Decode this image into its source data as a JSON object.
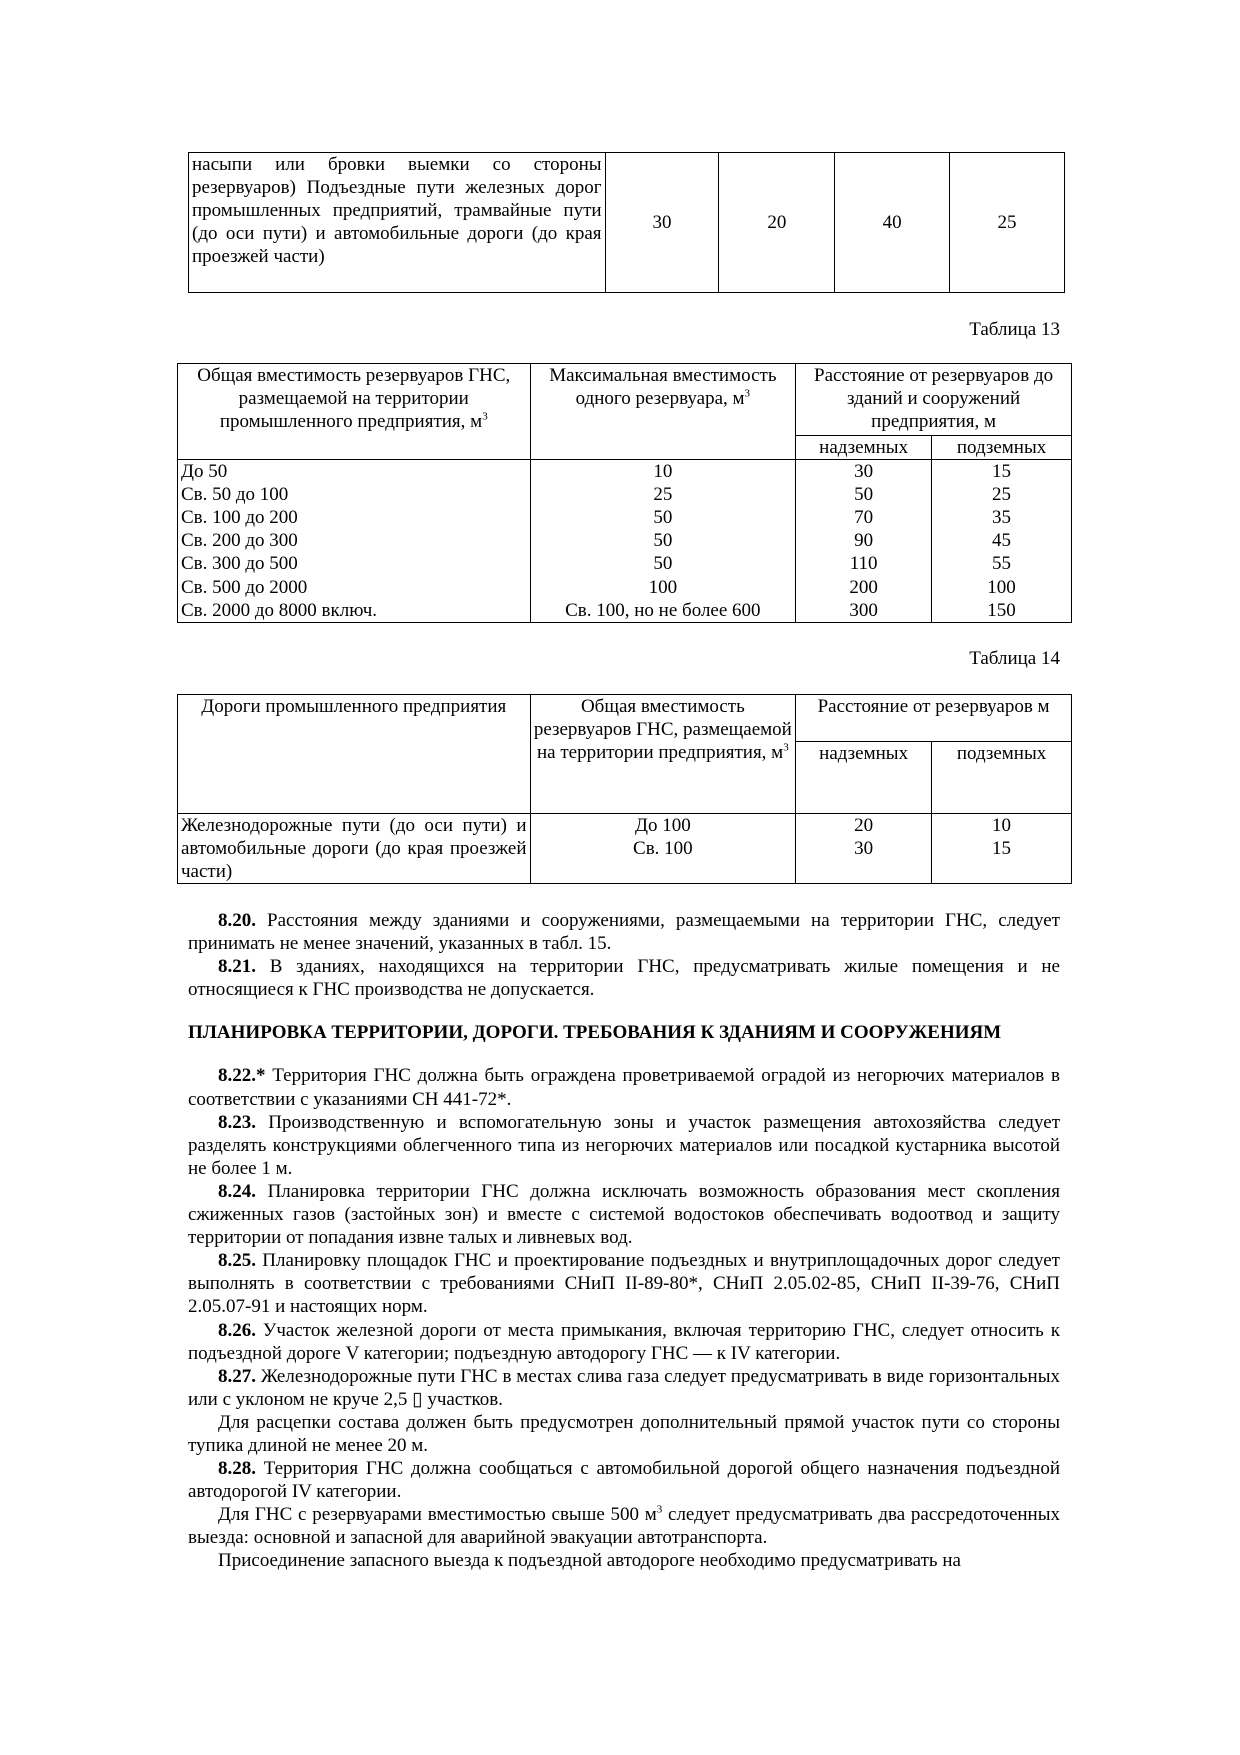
{
  "table12_tail": {
    "text": "насыпи или бровки выемки со стороны резервуаров) Подъездные пути железных дорог промышленных предприятий, трамвайные пути (до оси пути) и автомобильные дороги (до края проезжей части)",
    "values": [
      "30",
      "20",
      "40",
      "25"
    ]
  },
  "table13": {
    "caption": "Таблица 13",
    "headers": [
      "Общая вместимость резервуаров ГНС, размещаемой на территории промышленного предприятия, м",
      "Максимальная вместимость одного резервуара, м",
      "Расстояние от резервуаров до зданий и сооружений предприятия, м",
      "надземных",
      "подземных"
    ],
    "sup": "3",
    "rows": [
      [
        "До 50",
        "10",
        "30",
        "15"
      ],
      [
        "Св. 50 до 100",
        "25",
        "50",
        "25"
      ],
      [
        "Св. 100 до 200",
        "50",
        "70",
        "35"
      ],
      [
        "Св. 200 до 300",
        "50",
        "90",
        "45"
      ],
      [
        "Св. 300 до 500",
        "50",
        "110",
        "55"
      ],
      [
        "Св. 500 до 2000",
        "100",
        "200",
        "100"
      ],
      [
        "Св. 2000 до 8000 включ.",
        "Св. 100, но не более 600",
        "300",
        "150"
      ]
    ]
  },
  "table14": {
    "caption": "Таблица 14",
    "headers": [
      "Дороги промышленного предприятия",
      "Общая вместимость резервуаров ГНС, размещаемой на территории предприятия, м",
      "Расстояние от резервуаров м",
      "надземных",
      "подземных"
    ],
    "sup": "3",
    "row": {
      "road": "Железнодорожные пути (до оси пути) и автомобильные дороги (до края проезжей части)",
      "capacity": [
        "До 100",
        "Св. 100"
      ],
      "above": [
        "20",
        "30"
      ],
      "under": [
        "10",
        "15"
      ]
    }
  },
  "paragraphs": [
    {
      "num": "8.20.",
      "text": " Расстояния между зданиями и сооружениями, размещаемыми на территории ГНС, следует принимать не менее значений, указанных в табл. 15."
    },
    {
      "num": "8.21.",
      "text": " В зданиях, находящихся на территории ГНС, предусматривать жилые помещения и не относящиеся к ГНС производства не допускается."
    }
  ],
  "heading": "ПЛАНИРОВКА ТЕРРИТОРИИ, ДОРОГИ. ТРЕБОВАНИЯ К ЗДАНИЯМ И СООРУЖЕНИЯМ",
  "paragraphs2": [
    {
      "num": "8.22.*",
      "text": " Территория ГНС должна быть ограждена проветриваемой оградой из негорючих материалов в соответствии с указаниями СН 441-72*."
    },
    {
      "num": "8.23.",
      "text": " Производственную и вспомогательную зоны и участок размещения автохозяйства следует разделять конструкциями облегченного типа из негорючих материалов или посадкой кустарника высотой не более 1 м."
    },
    {
      "num": "8.24.",
      "text": " Планировка территории ГНС должна исключать возможность образования мест скопления сжиженных газов (застойных зон) и вместе с системой водостоков обеспечивать водоотвод и защиту территории от попадания извне талых и ливневых вод."
    },
    {
      "num": "8.25.",
      "text": " Планировку площадок ГНС и проектирование подъездных и внутриплощадочных дорог следует выполнять в соответствии с требованиями СНиП II-89-80*, СНиП 2.05.02-85, СНиП II-39-76, СНиП 2.05.07-91 и настоящих норм."
    },
    {
      "num": "8.26.",
      "text": " Участок железной дороги от места примыкания, включая территорию ГНС, следует относить к подъездной дороге V категории; подъездную автодорогу ГНС — к IV категории."
    },
    {
      "num": "8.27.",
      "text": " Железнодорожные пути ГНС в местах слива газа следует предусматривать в виде горизонтальных или с уклоном не круче 2,5 ▯ участков."
    },
    {
      "num": "",
      "text": "Для расцепки состава должен быть предусмотрен дополнительный прямой участок пути со стороны тупика длиной не менее 20 м."
    },
    {
      "num": "8.28.",
      "text": " Территория ГНС должна сообщаться с автомобильной дорогой общего назначения подъездной автодорогой IV категории."
    }
  ],
  "p_500": {
    "before": "Для ГНС с резервуарами вместимостью свыше 500 м",
    "sup": "3",
    "after": " следует предусматривать два рассредоточенных выезда: основной и запасной для аварийной эвакуации автотранспорта."
  },
  "p_last": "Присоединение запасного выезда к подъездной автодороге необходимо предусматривать на"
}
